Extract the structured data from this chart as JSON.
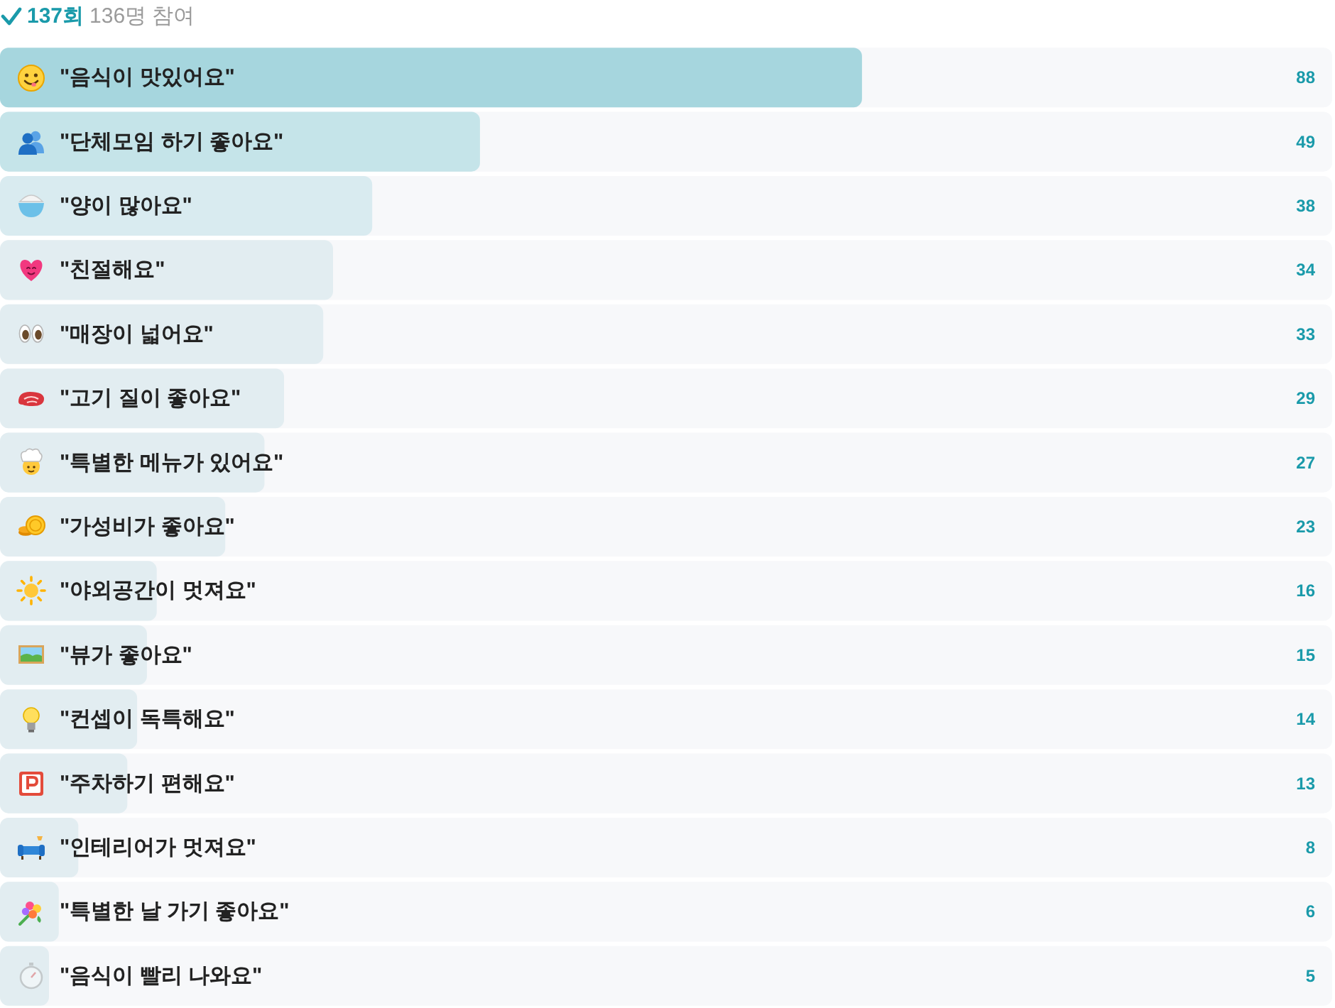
{
  "chart_data": {
    "type": "bar",
    "orientation": "horizontal",
    "title": "137회",
    "subtitle": "136명 참여",
    "categories": [
      "\"음식이 맛있어요\"",
      "\"단체모임 하기 좋아요\"",
      "\"양이 많아요\"",
      "\"친절해요\"",
      "\"매장이 넓어요\"",
      "\"고기 질이 좋아요\"",
      "\"특별한 메뉴가 있어요\"",
      "\"가성비가 좋아요\"",
      "\"야외공간이 멋져요\"",
      "\"뷰가 좋아요\"",
      "\"컨셉이 독특해요\"",
      "\"주차하기 편해요\"",
      "\"인테리어가 멋져요\"",
      "\"특별한 날 가기 좋아요\"",
      "\"음식이 빨리 나와요\""
    ],
    "values": [
      88,
      49,
      38,
      34,
      33,
      29,
      27,
      23,
      16,
      15,
      14,
      13,
      8,
      6,
      5
    ],
    "colors": [
      "#a6d6de",
      "#c5e4e9",
      "#d9ebf0",
      "#e2edf1",
      "#e2edf1",
      "#e2edf1",
      "#e2edf1",
      "#e2edf1",
      "#e2edf1",
      "#e2edf1",
      "#e2edf1",
      "#e2edf1",
      "#e2edf1",
      "#e2edf1",
      "#e2edf1"
    ],
    "xlim": [
      0,
      136
    ],
    "data_labels": true,
    "tick_labels": "y"
  }
}
